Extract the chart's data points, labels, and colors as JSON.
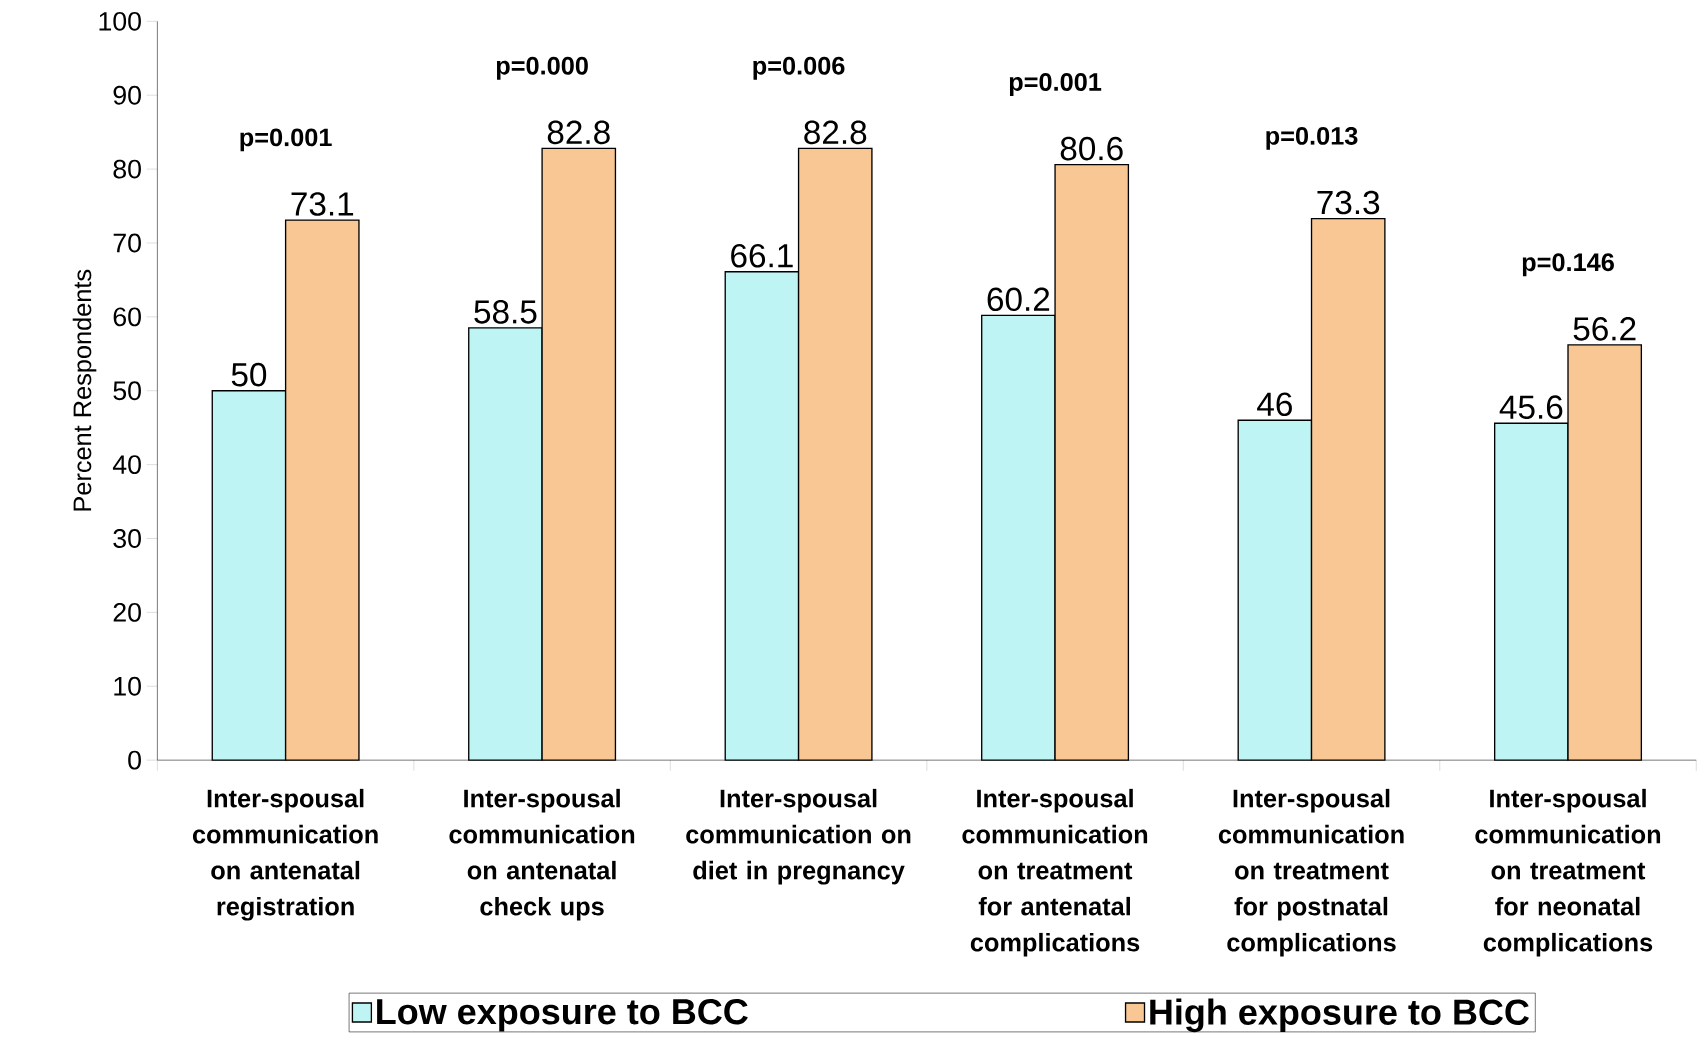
{
  "chart_data": {
    "type": "bar",
    "ylabel": "Percent Respondents",
    "categories": [
      "Inter-spousal communication on antenatal registration",
      "Inter-spousal communication on antenatal check ups",
      "Inter-spousal communication on diet in pregnancy",
      "Inter-spousal communication on treatment for antenatal complications",
      "Inter-spousal communication on treatment for postnatal complications",
      "Inter-spousal communication on treatment for neonatal complications"
    ],
    "series": [
      {
        "name": "Low exposure to BCC",
        "color": "#bff4f4",
        "values": [
          50,
          58.5,
          66.1,
          60.2,
          46,
          45.6
        ]
      },
      {
        "name": "High exposure to BCC",
        "color": "#f8c794",
        "values": [
          73.1,
          82.8,
          82.8,
          80.6,
          73.3,
          56.2
        ]
      }
    ],
    "ylim": [
      0,
      100
    ],
    "yticks": [
      0,
      10,
      20,
      30,
      40,
      50,
      60,
      70,
      80,
      90,
      100
    ],
    "data_labels": true,
    "legend": "bottom",
    "grid": false,
    "annotations": [
      "p=0.001",
      "p=0.000",
      "p=0.006",
      "p=0.001",
      "p=0.013",
      "p=0.146"
    ]
  }
}
